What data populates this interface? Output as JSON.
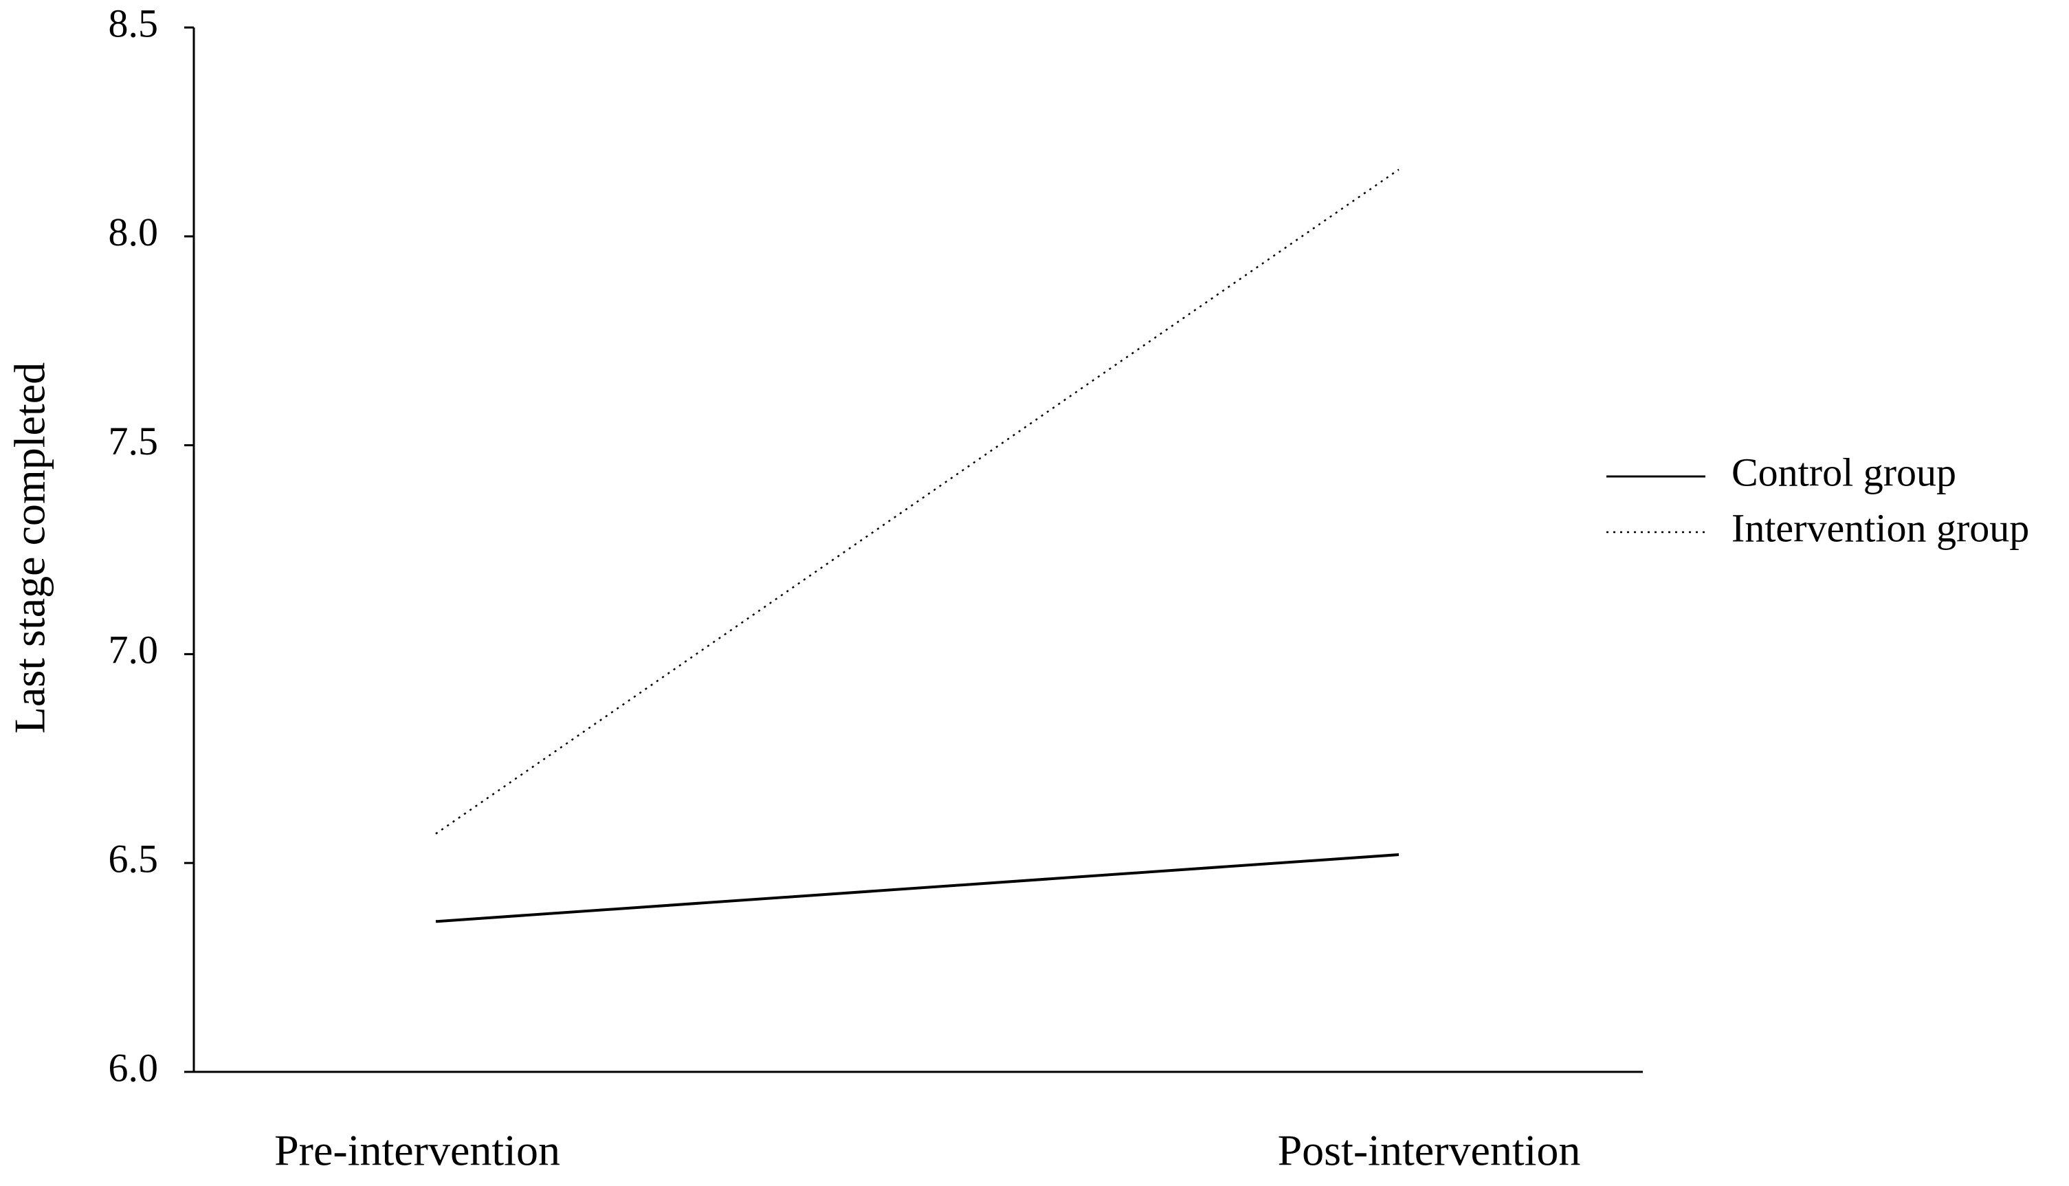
{
  "chart_data": {
    "type": "line",
    "y_label": "Last stage completed",
    "categories": [
      "Pre-intervention",
      "Post-intervention"
    ],
    "series": [
      {
        "name": "Control group",
        "color": "#000000",
        "dash": "solid",
        "values": [
          6.36,
          6.52
        ]
      },
      {
        "name": "Intervention group",
        "color": "#000000",
        "dash": "dotted",
        "values": [
          6.57,
          8.16
        ]
      }
    ],
    "ylim": [
      6.0,
      8.5
    ],
    "yticks": [
      {
        "value": 6,
        "label": "6.0"
      },
      6.5,
      {
        "value": 7,
        "label": "7.0"
      },
      7.5,
      {
        "value": 8,
        "label": "8.0"
      },
      8.5
    ],
    "grid": false,
    "legend": "right"
  }
}
